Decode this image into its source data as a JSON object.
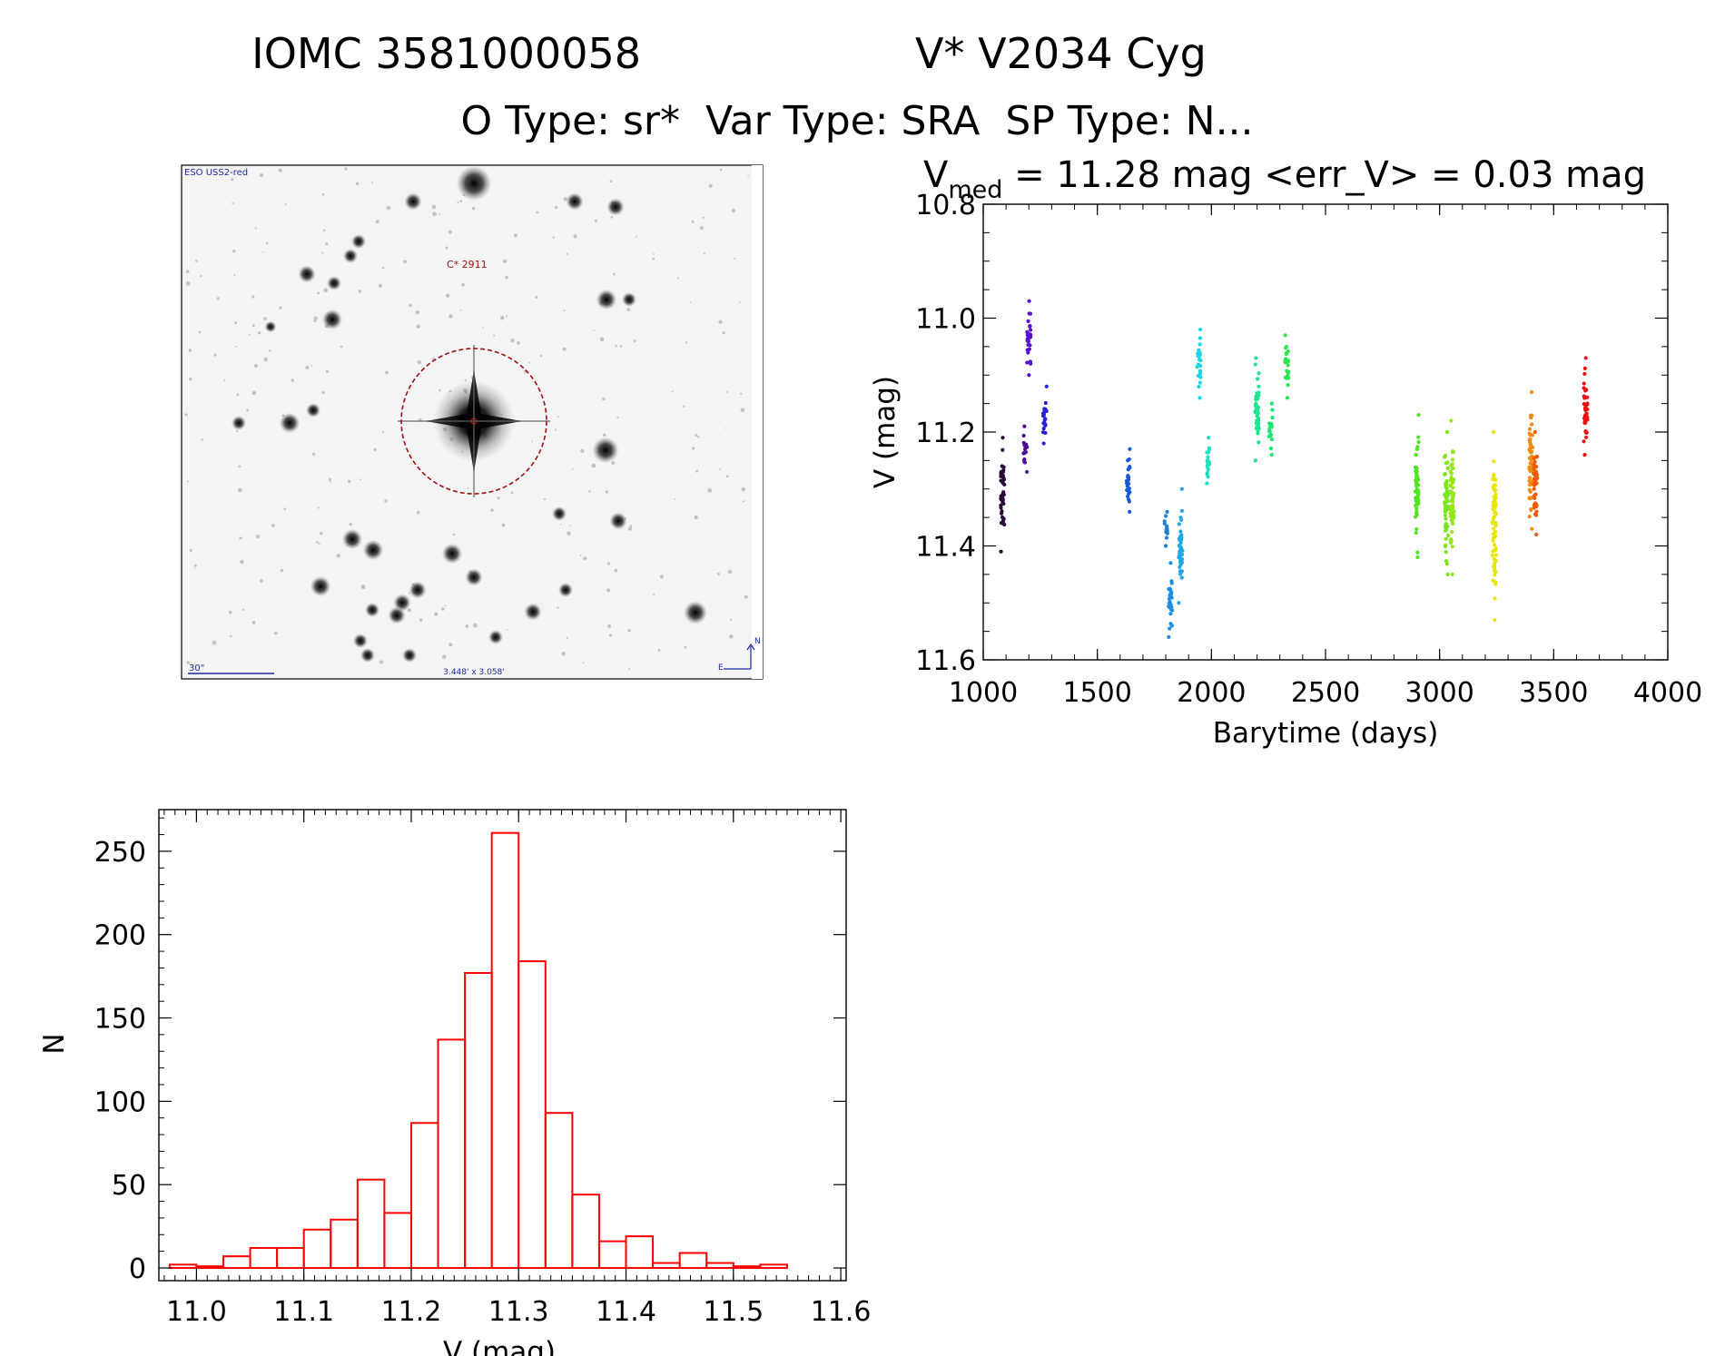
{
  "header": {
    "line1_left": "IOMC 3581000058",
    "line1_right": "V* V2034 Cyg",
    "line2": "O Type: sr*  Var Type: SRA  SP Type: N..."
  },
  "finder": {
    "survey_label": "ESO USS2-red",
    "target_label": "C* 2911",
    "scale_label": "30\"",
    "fov_label": "3.448' x 3.058'",
    "north_label": "N",
    "east_label": "E"
  },
  "lightcurve": {
    "title_main": "V",
    "title_sub": "med",
    "title_rest": " = 11.28 mag <err_V> = 0.03 mag"
  },
  "chart_data": [
    {
      "type": "scatter",
      "title": "V_med = 11.28 mag <err_V> = 0.03 mag",
      "xlabel": "Barytime (days)",
      "ylabel": "V (mag)",
      "xlim": [
        1000,
        4000
      ],
      "ylim": [
        11.6,
        10.8
      ],
      "y_inverted": true,
      "x_ticks": [
        1000,
        1500,
        2000,
        2500,
        3000,
        3500,
        4000
      ],
      "x_ticklabels": [
        "1000",
        "1500",
        "2000",
        "2500",
        "3000",
        "3500",
        "4000"
      ],
      "y_ticks": [
        10.8,
        11.0,
        11.2,
        11.4,
        11.6
      ],
      "y_ticklabels": [
        "10.8",
        "11.0",
        "11.2",
        "11.4",
        "11.6"
      ],
      "clusters": [
        {
          "x": 1085,
          "ymin": 11.21,
          "ymax": 11.41,
          "color": "#2a0a3a"
        },
        {
          "x": 1185,
          "ymin": 11.19,
          "ymax": 11.27,
          "color": "#4b0e90"
        },
        {
          "x": 1200,
          "ymin": 10.97,
          "ymax": 11.1,
          "color": "#5a0ed0"
        },
        {
          "x": 1270,
          "ymin": 11.12,
          "ymax": 11.22,
          "color": "#2a1ed8"
        },
        {
          "x": 1635,
          "ymin": 11.23,
          "ymax": 11.34,
          "color": "#1a56d8"
        },
        {
          "x": 1800,
          "ymin": 11.34,
          "ymax": 11.4,
          "color": "#1d7fd8"
        },
        {
          "x": 1820,
          "ymin": 11.43,
          "ymax": 11.56,
          "color": "#1d8ee0"
        },
        {
          "x": 1865,
          "ymin": 11.3,
          "ymax": 11.5,
          "color": "#1ea8e8"
        },
        {
          "x": 1945,
          "ymin": 11.02,
          "ymax": 11.14,
          "color": "#1ed4e8"
        },
        {
          "x": 1985,
          "ymin": 11.21,
          "ymax": 11.29,
          "color": "#1ee0c0"
        },
        {
          "x": 2200,
          "ymin": 11.07,
          "ymax": 11.25,
          "color": "#1ee690"
        },
        {
          "x": 2260,
          "ymin": 11.15,
          "ymax": 11.24,
          "color": "#1ee670"
        },
        {
          "x": 2330,
          "ymin": 11.03,
          "ymax": 11.14,
          "color": "#2ae650"
        },
        {
          "x": 2900,
          "ymin": 11.17,
          "ymax": 11.42,
          "color": "#4de61e"
        },
        {
          "x": 3030,
          "ymin": 11.2,
          "ymax": 11.45,
          "color": "#7ae61e"
        },
        {
          "x": 3055,
          "ymin": 11.18,
          "ymax": 11.45,
          "color": "#96e61e"
        },
        {
          "x": 3240,
          "ymin": 11.2,
          "ymax": 11.53,
          "color": "#e8e600"
        },
        {
          "x": 3400,
          "ymin": 11.13,
          "ymax": 11.37,
          "color": "#f28a0a"
        },
        {
          "x": 3420,
          "ymin": 11.2,
          "ymax": 11.38,
          "color": "#ec5a0a"
        },
        {
          "x": 3640,
          "ymin": 11.07,
          "ymax": 11.24,
          "color": "#e81010"
        }
      ]
    },
    {
      "type": "bar",
      "subtype": "histogram",
      "xlabel": "V (mag)",
      "ylabel": "N",
      "xlim": [
        10.965,
        11.605
      ],
      "ylim": [
        0,
        275
      ],
      "bin_width": 0.025,
      "bin_starts": [
        10.975,
        11.0,
        11.025,
        11.05,
        11.075,
        11.1,
        11.125,
        11.15,
        11.175,
        11.2,
        11.225,
        11.25,
        11.275,
        11.3,
        11.325,
        11.35,
        11.375,
        11.4,
        11.425,
        11.45,
        11.475,
        11.5,
        11.525,
        11.55
      ],
      "values": [
        2,
        1,
        7,
        12,
        12,
        23,
        29,
        53,
        33,
        87,
        137,
        177,
        261,
        184,
        93,
        44,
        16,
        19,
        3,
        9,
        3,
        1,
        2,
        0
      ],
      "color": "#ff0000",
      "x_ticks": [
        11.0,
        11.1,
        11.2,
        11.3,
        11.4,
        11.5,
        11.6
      ],
      "x_ticklabels": [
        "11.0",
        "11.1",
        "11.2",
        "11.3",
        "11.4",
        "11.5",
        "11.6"
      ],
      "y_ticks": [
        0,
        50,
        100,
        150,
        200,
        250
      ],
      "y_ticklabels": [
        "0",
        "50",
        "100",
        "150",
        "200",
        "250"
      ]
    }
  ]
}
